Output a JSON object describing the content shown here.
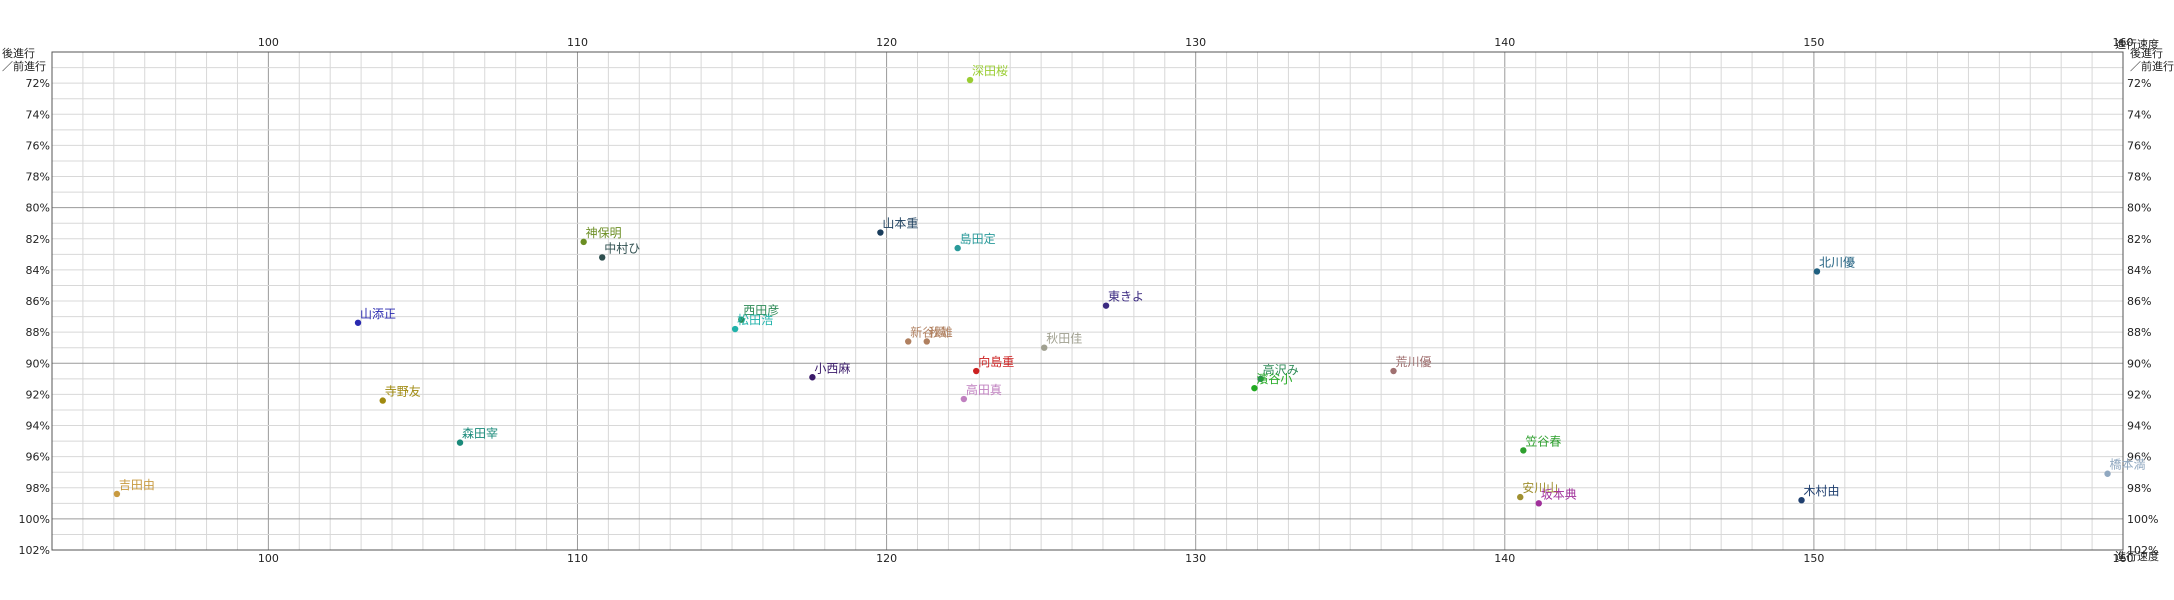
{
  "chart_data": {
    "type": "scatter",
    "x_axis_label": "進行速度",
    "y_axis_label_line1": "後進行",
    "y_axis_label_line2": "／前進行",
    "xlim": [
      93,
      160
    ],
    "ylim": [
      70,
      102
    ],
    "x_ticks": [
      100,
      110,
      120,
      130,
      140,
      150,
      160
    ],
    "y_ticks": [
      72,
      74,
      76,
      78,
      80,
      82,
      84,
      86,
      88,
      90,
      92,
      94,
      96,
      98,
      100,
      102
    ],
    "y_tick_suffix": "%",
    "grid": true,
    "points": [
      {
        "label": "深田桜",
        "x": 122.7,
        "y": 71.8,
        "color": "#9acd32"
      },
      {
        "label": "山本重",
        "x": 119.8,
        "y": 81.6,
        "color": "#1a3d5c"
      },
      {
        "label": "島田定",
        "x": 122.3,
        "y": 82.6,
        "color": "#2a9a9a"
      },
      {
        "label": "神保明",
        "x": 110.2,
        "y": 82.2,
        "color": "#6b8e23"
      },
      {
        "label": "中村ひ",
        "x": 110.8,
        "y": 83.2,
        "color": "#2f4f4f"
      },
      {
        "label": "北川優",
        "x": 150.1,
        "y": 84.1,
        "color": "#1f5f7f"
      },
      {
        "label": "東きよ",
        "x": 127.1,
        "y": 86.3,
        "color": "#3b2a80"
      },
      {
        "label": "山添正",
        "x": 102.9,
        "y": 87.4,
        "color": "#2a2ab0"
      },
      {
        "label": "西田彦",
        "x": 115.3,
        "y": 87.2,
        "color": "#2e8b57"
      },
      {
        "label": "松田浩",
        "x": 115.1,
        "y": 87.8,
        "color": "#20b2aa"
      },
      {
        "label": "新谷顕",
        "x": 120.7,
        "y": 88.6,
        "color": "#b08060"
      },
      {
        "label": "秋雄",
        "x": 121.3,
        "y": 88.6,
        "color": "#b08060"
      },
      {
        "label": "秋田佳",
        "x": 125.1,
        "y": 89.0,
        "color": "#a0a090"
      },
      {
        "label": "向島重",
        "x": 122.9,
        "y": 90.5,
        "color": "#cc2020"
      },
      {
        "label": "小西麻",
        "x": 117.6,
        "y": 90.9,
        "color": "#3a1a6a"
      },
      {
        "label": "高沢み",
        "x": 132.1,
        "y": 91.0,
        "color": "#2e8b57"
      },
      {
        "label": "濱谷小",
        "x": 131.9,
        "y": 91.6,
        "color": "#22aa22"
      },
      {
        "label": "荒川優",
        "x": 136.4,
        "y": 90.5,
        "color": "#a07070"
      },
      {
        "label": "寺野友",
        "x": 103.7,
        "y": 92.4,
        "color": "#a08a10"
      },
      {
        "label": "高田真",
        "x": 122.5,
        "y": 92.3,
        "color": "#c080c0"
      },
      {
        "label": "森田宰",
        "x": 106.2,
        "y": 95.1,
        "color": "#1a8a7a"
      },
      {
        "label": "笠谷春",
        "x": 140.6,
        "y": 95.6,
        "color": "#2ea02e"
      },
      {
        "label": "橋本満",
        "x": 159.5,
        "y": 97.1,
        "color": "#90a8c0"
      },
      {
        "label": "吉田由",
        "x": 95.1,
        "y": 98.4,
        "color": "#c89a40"
      },
      {
        "label": "安川山",
        "x": 140.5,
        "y": 98.6,
        "color": "#a09030"
      },
      {
        "label": "坂本典",
        "x": 141.1,
        "y": 99.0,
        "color": "#a0309a"
      },
      {
        "label": "木村由",
        "x": 149.6,
        "y": 98.8,
        "color": "#1f3f6f"
      }
    ]
  }
}
